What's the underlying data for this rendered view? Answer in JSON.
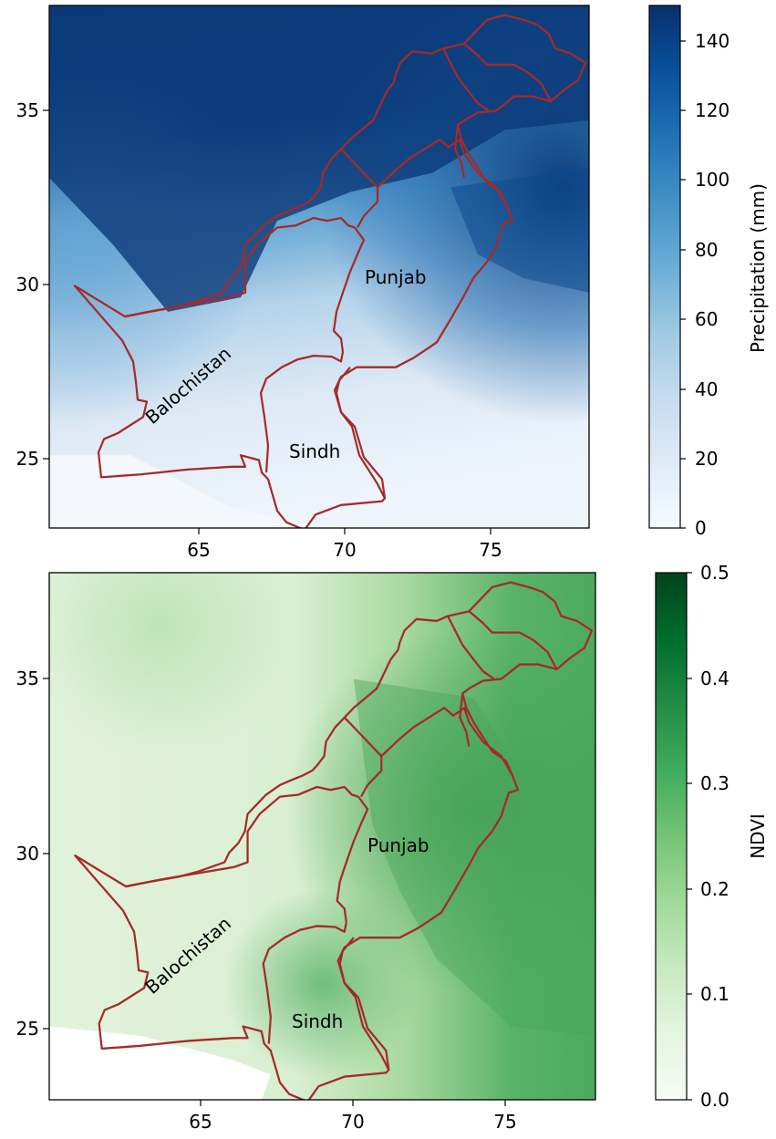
{
  "panels": [
    {
      "id": "precip",
      "xticks": [
        "65",
        "70",
        "75"
      ],
      "yticks": [
        "25",
        "30",
        "35"
      ],
      "regions": {
        "punjab": "Punjab",
        "balochistan": "Balochistan",
        "sindh": "Sindh"
      },
      "colorbar": {
        "label": "Precipitation (mm)",
        "ticks": [
          "0",
          "20",
          "40",
          "60",
          "80",
          "100",
          "120",
          "140"
        ],
        "colors": [
          "#f7fbff",
          "#deebf7",
          "#c6dbef",
          "#9ecae1",
          "#6baed6",
          "#4292c6",
          "#2171b5",
          "#08519c",
          "#08306b"
        ]
      }
    },
    {
      "id": "ndvi",
      "xticks": [
        "65",
        "70",
        "75"
      ],
      "yticks": [
        "25",
        "30",
        "35"
      ],
      "regions": {
        "punjab": "Punjab",
        "balochistan": "Balochistan",
        "sindh": "Sindh"
      },
      "colorbar": {
        "label": "NDVI",
        "ticks": [
          "0.0",
          "0.1",
          "0.2",
          "0.3",
          "0.4",
          "0.5"
        ],
        "colors": [
          "#f7fcf5",
          "#e5f5e0",
          "#c7e9c0",
          "#a1d99b",
          "#74c476",
          "#41ab5d",
          "#238b45",
          "#006d2c",
          "#00441b"
        ]
      }
    }
  ],
  "boundary_color": "#a52a2a"
}
